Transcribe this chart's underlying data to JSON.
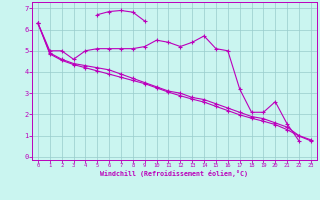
{
  "xlabel": "Windchill (Refroidissement éolien,°C)",
  "bg_color": "#caf5f0",
  "line_color": "#bb00bb",
  "series1_x": [
    0,
    1,
    2,
    3,
    4,
    5,
    6,
    7,
    8,
    9,
    10,
    11,
    12,
    13,
    14,
    15,
    16,
    17,
    18,
    19,
    20,
    21,
    22
  ],
  "series1_y": [
    6.3,
    5.0,
    5.0,
    4.6,
    5.0,
    5.1,
    5.1,
    5.1,
    5.1,
    5.2,
    5.5,
    5.4,
    5.2,
    5.4,
    5.7,
    5.1,
    5.0,
    3.2,
    2.1,
    2.1,
    2.6,
    1.55,
    0.75
  ],
  "series2_x": [
    0,
    1,
    2,
    3,
    4,
    5,
    6,
    7,
    8,
    9,
    10,
    11,
    12,
    13,
    14,
    15,
    16,
    17,
    18,
    19,
    20,
    21,
    22,
    23
  ],
  "series2_y": [
    6.3,
    4.9,
    4.6,
    4.4,
    4.3,
    4.2,
    4.1,
    3.9,
    3.7,
    3.5,
    3.3,
    3.1,
    3.0,
    2.8,
    2.7,
    2.5,
    2.3,
    2.1,
    1.9,
    1.8,
    1.6,
    1.4,
    1.0,
    0.8
  ],
  "series3_x": [
    0,
    1,
    2,
    3,
    4,
    5,
    6,
    7,
    8,
    9,
    10,
    11,
    12,
    13,
    14,
    15,
    16,
    17,
    18,
    19,
    20,
    21,
    22,
    23
  ],
  "series3_y": [
    6.3,
    4.85,
    4.55,
    4.35,
    4.2,
    4.05,
    3.9,
    3.75,
    3.6,
    3.45,
    3.25,
    3.05,
    2.88,
    2.72,
    2.58,
    2.38,
    2.18,
    1.98,
    1.82,
    1.68,
    1.52,
    1.28,
    0.98,
    0.75
  ],
  "series4_x": [
    5,
    6,
    7,
    8,
    9
  ],
  "series4_y": [
    6.7,
    6.85,
    6.9,
    6.82,
    6.4
  ],
  "xlim": [
    -0.5,
    23.5
  ],
  "ylim": [
    -0.15,
    7.3
  ],
  "xticks": [
    0,
    1,
    2,
    3,
    4,
    5,
    6,
    7,
    8,
    9,
    10,
    11,
    12,
    13,
    14,
    15,
    16,
    17,
    18,
    19,
    20,
    21,
    22,
    23
  ],
  "yticks": [
    0,
    1,
    2,
    3,
    4,
    5,
    6,
    7
  ]
}
